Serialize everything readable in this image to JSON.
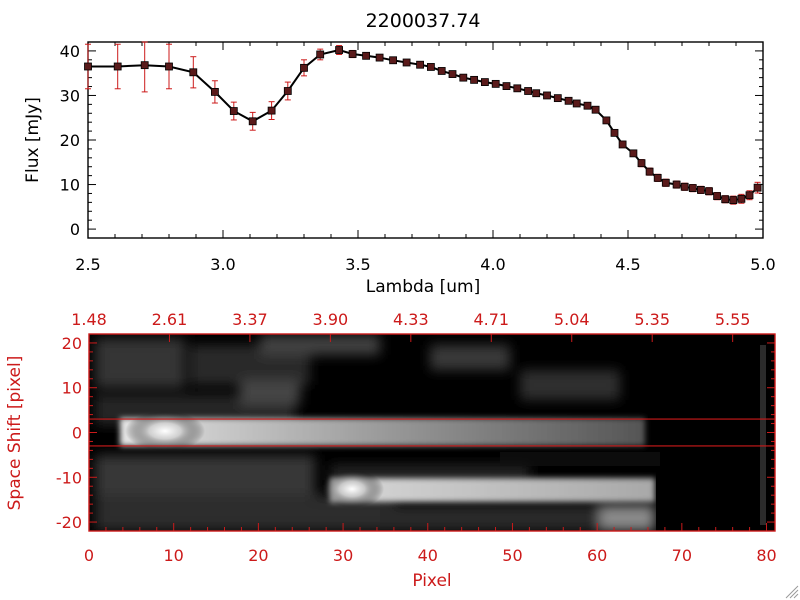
{
  "colors": {
    "axis": "#000000",
    "accent": "#cc1a1a",
    "marker": "#5a1a1a",
    "line": "#000000"
  },
  "chart_data": [
    {
      "type": "line",
      "title": "2200037.74",
      "xlabel": "Lambda [um]",
      "ylabel": "Flux [mJy]",
      "xlim": [
        2.5,
        5.0
      ],
      "ylim": [
        -2,
        42
      ],
      "xticks": [
        2.5,
        3.0,
        3.5,
        4.0,
        4.5,
        5.0
      ],
      "xtick_labels": [
        "2.5",
        "3.0",
        "3.5",
        "4.0",
        "4.5",
        "5.0"
      ],
      "yticks": [
        0,
        10,
        20,
        30,
        40
      ],
      "ytick_labels": [
        "0",
        "10",
        "20",
        "30",
        "40"
      ],
      "grid": false,
      "series": [
        {
          "x": [
            2.5,
            2.61,
            2.71,
            2.8,
            2.89,
            2.97,
            3.04,
            3.11,
            3.18,
            3.24,
            3.3,
            3.36,
            3.43,
            3.48,
            3.53,
            3.58,
            3.63,
            3.68,
            3.73,
            3.77,
            3.81,
            3.85,
            3.89,
            3.93,
            3.97,
            4.01,
            4.05,
            4.09,
            4.13,
            4.16,
            4.2,
            4.24,
            4.28,
            4.31,
            4.35,
            4.38,
            4.42,
            4.45,
            4.48,
            4.52,
            4.55,
            4.58,
            4.61,
            4.64,
            4.68,
            4.71,
            4.74,
            4.77,
            4.8,
            4.83,
            4.86,
            4.89,
            4.92,
            4.95,
            4.98
          ],
          "y": [
            36.5,
            36.5,
            36.8,
            36.5,
            35.2,
            30.8,
            26.5,
            24.2,
            26.6,
            31.0,
            36.2,
            39.2,
            40.2,
            39.3,
            38.9,
            38.5,
            37.9,
            37.4,
            36.9,
            36.4,
            35.5,
            34.8,
            34.0,
            33.5,
            33.0,
            32.6,
            32.1,
            31.6,
            31.0,
            30.5,
            30.0,
            29.4,
            28.8,
            28.2,
            27.7,
            26.8,
            24.4,
            21.6,
            19.0,
            17.0,
            14.8,
            12.9,
            11.5,
            10.4,
            10.0,
            9.5,
            9.2,
            8.8,
            8.5,
            7.4,
            6.7,
            6.5,
            6.8,
            7.6,
            9.3
          ],
          "error": [
            5,
            5,
            6,
            5,
            3.5,
            2.5,
            2,
            2,
            2,
            2,
            1.8,
            1.2,
            1,
            0.8,
            0.6,
            0.5,
            0.5,
            0.5,
            0.5,
            0.5,
            0.5,
            0.5,
            0.5,
            0.5,
            0.5,
            0.5,
            0.5,
            0.5,
            0.5,
            0.5,
            0.5,
            0.5,
            0.5,
            0.5,
            0.5,
            0.6,
            0.6,
            0.6,
            0.7,
            0.7,
            0.8,
            0.8,
            0.8,
            0.8,
            0.8,
            0.8,
            0.8,
            0.8,
            0.8,
            0.8,
            0.8,
            0.9,
            1.0,
            1.0,
            1.2
          ]
        }
      ]
    },
    {
      "type": "heatmap",
      "xlabel": "Pixel",
      "ylabel": "Space Shift [pixel]",
      "xlim": [
        0,
        81
      ],
      "ylim": [
        -22,
        22
      ],
      "xticks": [
        0,
        10,
        20,
        30,
        40,
        50,
        60,
        70,
        80
      ],
      "xtick_labels": [
        "0",
        "10",
        "20",
        "30",
        "40",
        "50",
        "60",
        "70",
        "80"
      ],
      "yticks": [
        -20,
        -10,
        0,
        10,
        20
      ],
      "ytick_labels": [
        "-20",
        "-10",
        "0",
        "10",
        "20"
      ],
      "top_ticks": [
        0,
        9.5,
        19,
        28.5,
        38,
        47.5,
        57,
        66.5,
        76
      ],
      "top_tick_labels": [
        "1.48",
        "2.61",
        "3.37",
        "3.90",
        "4.33",
        "4.71",
        "5.04",
        "5.35",
        "5.55"
      ],
      "extraction_window": [
        -3,
        3
      ],
      "sources": [
        {
          "x": [
            7,
            64
          ],
          "y": 0.5,
          "peak": 1.0
        },
        {
          "x": [
            31,
            67
          ],
          "y": -11.5,
          "peak": 0.9
        }
      ]
    }
  ]
}
